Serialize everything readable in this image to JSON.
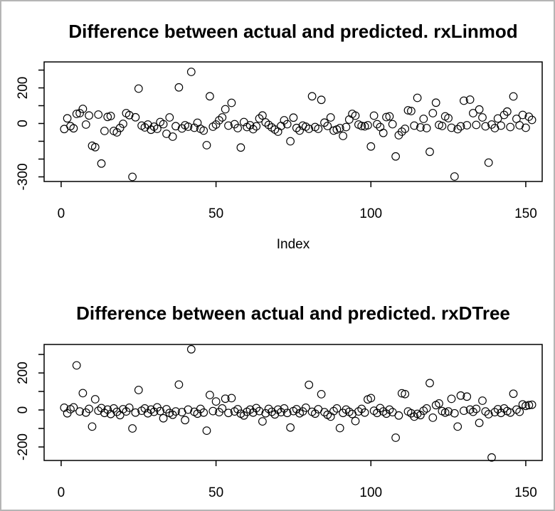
{
  "window": {
    "background": "#ffffff",
    "border_color": "#b5b5b5",
    "text_color": "#000000",
    "marker_color": "#000000"
  },
  "chart_data": [
    {
      "type": "scatter",
      "title": "Difference between actual and predicted. rxLinmod",
      "xlabel": "Index",
      "ylabel": "",
      "marker": "open-circle",
      "grid": false,
      "xlim": [
        -5.5,
        155.3
      ],
      "ylim": [
        -326,
        346
      ],
      "x_ticks": [
        {
          "v": 0,
          "label": "0"
        },
        {
          "v": 50,
          "label": "50"
        },
        {
          "v": 100,
          "label": "100"
        },
        {
          "v": 150,
          "label": "150"
        }
      ],
      "y_ticks": [
        {
          "v": 300,
          "label": ""
        },
        {
          "v": 200,
          "label": "200"
        },
        {
          "v": 100,
          "label": ""
        },
        {
          "v": 0,
          "label": "0"
        },
        {
          "v": -100,
          "label": ""
        },
        {
          "v": -200,
          "label": ""
        },
        {
          "v": -300,
          "label": "-300"
        }
      ],
      "points": [
        [
          1,
          -31
        ],
        [
          2,
          29
        ],
        [
          3,
          -15
        ],
        [
          4,
          -27
        ],
        [
          5,
          54
        ],
        [
          6,
          58
        ],
        [
          7,
          82
        ],
        [
          8,
          -6
        ],
        [
          9,
          45
        ],
        [
          10,
          -125
        ],
        [
          11,
          -133
        ],
        [
          12,
          50
        ],
        [
          13,
          -225
        ],
        [
          14,
          -42
        ],
        [
          15,
          37
        ],
        [
          16,
          42
        ],
        [
          17,
          -42
        ],
        [
          18,
          -50
        ],
        [
          19,
          -25
        ],
        [
          20,
          -2
        ],
        [
          21,
          58
        ],
        [
          22,
          47
        ],
        [
          23,
          -300
        ],
        [
          24,
          35
        ],
        [
          25,
          196
        ],
        [
          26,
          -12
        ],
        [
          27,
          -22
        ],
        [
          28,
          -6
        ],
        [
          29,
          -35
        ],
        [
          30,
          -18
        ],
        [
          31,
          -30
        ],
        [
          32,
          8
        ],
        [
          33,
          -4
        ],
        [
          34,
          -58
        ],
        [
          35,
          34
        ],
        [
          36,
          -74
        ],
        [
          37,
          -15
        ],
        [
          38,
          203
        ],
        [
          39,
          -28
        ],
        [
          40,
          -10
        ],
        [
          41,
          -18
        ],
        [
          42,
          290
        ],
        [
          43,
          -24
        ],
        [
          44,
          4
        ],
        [
          45,
          -30
        ],
        [
          46,
          -40
        ],
        [
          47,
          -122
        ],
        [
          48,
          153
        ],
        [
          49,
          -18
        ],
        [
          50,
          -6
        ],
        [
          51,
          18
        ],
        [
          52,
          34
        ],
        [
          53,
          80
        ],
        [
          54,
          -12
        ],
        [
          55,
          116
        ],
        [
          56,
          -4
        ],
        [
          57,
          -26
        ],
        [
          58,
          -135
        ],
        [
          59,
          8
        ],
        [
          60,
          -20
        ],
        [
          61,
          -10
        ],
        [
          62,
          -32
        ],
        [
          63,
          -16
        ],
        [
          64,
          28
        ],
        [
          65,
          45
        ],
        [
          66,
          6
        ],
        [
          67,
          -8
        ],
        [
          68,
          -22
        ],
        [
          69,
          -34
        ],
        [
          70,
          -46
        ],
        [
          71,
          -14
        ],
        [
          72,
          18
        ],
        [
          73,
          -4
        ],
        [
          74,
          -100
        ],
        [
          75,
          33
        ],
        [
          76,
          -25
        ],
        [
          77,
          -40
        ],
        [
          78,
          -12
        ],
        [
          79,
          -18
        ],
        [
          80,
          -30
        ],
        [
          81,
          153
        ],
        [
          82,
          -20
        ],
        [
          83,
          -30
        ],
        [
          84,
          133
        ],
        [
          85,
          5
        ],
        [
          86,
          -14
        ],
        [
          87,
          34
        ],
        [
          88,
          -40
        ],
        [
          89,
          -34
        ],
        [
          90,
          -26
        ],
        [
          91,
          -70
        ],
        [
          92,
          -20
        ],
        [
          93,
          22
        ],
        [
          94,
          54
        ],
        [
          95,
          44
        ],
        [
          96,
          -6
        ],
        [
          97,
          -14
        ],
        [
          98,
          -16
        ],
        [
          99,
          -10
        ],
        [
          100,
          -129
        ],
        [
          101,
          44
        ],
        [
          102,
          -4
        ],
        [
          103,
          -20
        ],
        [
          104,
          -53
        ],
        [
          105,
          36
        ],
        [
          106,
          40
        ],
        [
          107,
          -4
        ],
        [
          108,
          -185
        ],
        [
          109,
          -66
        ],
        [
          110,
          -46
        ],
        [
          111,
          -30
        ],
        [
          112,
          74
        ],
        [
          113,
          70
        ],
        [
          114,
          -12
        ],
        [
          115,
          144
        ],
        [
          116,
          -22
        ],
        [
          117,
          26
        ],
        [
          118,
          -26
        ],
        [
          119,
          -159
        ],
        [
          120,
          58
        ],
        [
          121,
          117
        ],
        [
          122,
          -8
        ],
        [
          123,
          -14
        ],
        [
          124,
          40
        ],
        [
          125,
          30
        ],
        [
          126,
          -24
        ],
        [
          127,
          -298
        ],
        [
          128,
          -32
        ],
        [
          129,
          -16
        ],
        [
          130,
          128
        ],
        [
          131,
          -10
        ],
        [
          132,
          134
        ],
        [
          133,
          58
        ],
        [
          134,
          -8
        ],
        [
          135,
          79
        ],
        [
          136,
          34
        ],
        [
          137,
          -16
        ],
        [
          138,
          -220
        ],
        [
          139,
          -6
        ],
        [
          140,
          -26
        ],
        [
          141,
          28
        ],
        [
          142,
          -12
        ],
        [
          143,
          48
        ],
        [
          144,
          67
        ],
        [
          145,
          -20
        ],
        [
          146,
          152
        ],
        [
          147,
          26
        ],
        [
          148,
          -10
        ],
        [
          149,
          48
        ],
        [
          150,
          -24
        ],
        [
          151,
          38
        ],
        [
          152,
          20
        ]
      ]
    },
    {
      "type": "scatter",
      "title": "Difference between actual and predicted. rxDTree",
      "xlabel": "",
      "ylabel": "",
      "marker": "open-circle",
      "grid": false,
      "xlim": [
        -5.5,
        155.3
      ],
      "ylim": [
        -273,
        354
      ],
      "x_ticks": [
        {
          "v": 0,
          "label": "0"
        },
        {
          "v": 50,
          "label": "50"
        },
        {
          "v": 100,
          "label": "100"
        },
        {
          "v": 150,
          "label": "150"
        }
      ],
      "y_ticks": [
        {
          "v": 300,
          "label": ""
        },
        {
          "v": 200,
          "label": "200"
        },
        {
          "v": 100,
          "label": ""
        },
        {
          "v": 0,
          "label": "0"
        },
        {
          "v": -100,
          "label": ""
        },
        {
          "v": -200,
          "label": "-200"
        }
      ],
      "points": [
        [
          1,
          12
        ],
        [
          2,
          -18
        ],
        [
          3,
          4
        ],
        [
          4,
          14
        ],
        [
          5,
          241
        ],
        [
          6,
          -8
        ],
        [
          7,
          91
        ],
        [
          8,
          -14
        ],
        [
          9,
          6
        ],
        [
          10,
          -90
        ],
        [
          11,
          58
        ],
        [
          12,
          -4
        ],
        [
          13,
          10
        ],
        [
          14,
          -16
        ],
        [
          15,
          2
        ],
        [
          16,
          -22
        ],
        [
          17,
          8
        ],
        [
          18,
          -10
        ],
        [
          19,
          -28
        ],
        [
          20,
          4
        ],
        [
          21,
          -8
        ],
        [
          22,
          12
        ],
        [
          23,
          -100
        ],
        [
          24,
          -14
        ],
        [
          25,
          108
        ],
        [
          26,
          -4
        ],
        [
          27,
          8
        ],
        [
          28,
          -18
        ],
        [
          29,
          2
        ],
        [
          30,
          -10
        ],
        [
          31,
          14
        ],
        [
          32,
          -6
        ],
        [
          33,
          -45
        ],
        [
          34,
          4
        ],
        [
          35,
          -16
        ],
        [
          36,
          -26
        ],
        [
          37,
          -8
        ],
        [
          38,
          137
        ],
        [
          39,
          -12
        ],
        [
          40,
          -55
        ],
        [
          41,
          2
        ],
        [
          42,
          328
        ],
        [
          43,
          -10
        ],
        [
          44,
          -20
        ],
        [
          45,
          6
        ],
        [
          46,
          -14
        ],
        [
          47,
          -112
        ],
        [
          48,
          81
        ],
        [
          49,
          -6
        ],
        [
          50,
          46
        ],
        [
          51,
          -12
        ],
        [
          52,
          8
        ],
        [
          53,
          61
        ],
        [
          54,
          -16
        ],
        [
          55,
          64
        ],
        [
          56,
          -8
        ],
        [
          57,
          4
        ],
        [
          58,
          -20
        ],
        [
          59,
          -30
        ],
        [
          60,
          -10
        ],
        [
          61,
          2
        ],
        [
          62,
          -14
        ],
        [
          63,
          10
        ],
        [
          64,
          -6
        ],
        [
          65,
          -62
        ],
        [
          66,
          -18
        ],
        [
          67,
          6
        ],
        [
          68,
          -10
        ],
        [
          69,
          -24
        ],
        [
          70,
          2
        ],
        [
          71,
          -12
        ],
        [
          72,
          8
        ],
        [
          73,
          -16
        ],
        [
          74,
          -95
        ],
        [
          75,
          -6
        ],
        [
          76,
          4
        ],
        [
          77,
          -18
        ],
        [
          78,
          -8
        ],
        [
          79,
          12
        ],
        [
          80,
          136
        ],
        [
          81,
          -10
        ],
        [
          82,
          -20
        ],
        [
          83,
          4
        ],
        [
          84,
          85
        ],
        [
          85,
          -12
        ],
        [
          86,
          -26
        ],
        [
          87,
          -36
        ],
        [
          88,
          -6
        ],
        [
          89,
          8
        ],
        [
          90,
          -98
        ],
        [
          91,
          -16
        ],
        [
          92,
          2
        ],
        [
          93,
          -10
        ],
        [
          94,
          -22
        ],
        [
          95,
          -60
        ],
        [
          96,
          -8
        ],
        [
          97,
          6
        ],
        [
          98,
          -14
        ],
        [
          99,
          57
        ],
        [
          100,
          64
        ],
        [
          101,
          -4
        ],
        [
          102,
          -16
        ],
        [
          103,
          10
        ],
        [
          104,
          -8
        ],
        [
          105,
          -20
        ],
        [
          106,
          2
        ],
        [
          107,
          -12
        ],
        [
          108,
          -150
        ],
        [
          109,
          -30
        ],
        [
          110,
          90
        ],
        [
          111,
          86
        ],
        [
          112,
          -8
        ],
        [
          113,
          -18
        ],
        [
          114,
          -36
        ],
        [
          115,
          -21
        ],
        [
          116,
          -28
        ],
        [
          117,
          -4
        ],
        [
          118,
          8
        ],
        [
          119,
          145
        ],
        [
          120,
          -42
        ],
        [
          121,
          26
        ],
        [
          122,
          35
        ],
        [
          123,
          -6
        ],
        [
          124,
          -14
        ],
        [
          125,
          -8
        ],
        [
          126,
          60
        ],
        [
          127,
          -18
        ],
        [
          128,
          -90
        ],
        [
          129,
          78
        ],
        [
          130,
          -4
        ],
        [
          131,
          72
        ],
        [
          132,
          2
        ],
        [
          133,
          -10
        ],
        [
          134,
          6
        ],
        [
          135,
          -70
        ],
        [
          136,
          50
        ],
        [
          137,
          -8
        ],
        [
          138,
          -23
        ],
        [
          139,
          -257
        ],
        [
          140,
          -12
        ],
        [
          141,
          4
        ],
        [
          142,
          -16
        ],
        [
          143,
          8
        ],
        [
          144,
          -6
        ],
        [
          145,
          -14
        ],
        [
          146,
          88
        ],
        [
          147,
          2
        ],
        [
          148,
          -10
        ],
        [
          149,
          30
        ],
        [
          150,
          22
        ],
        [
          151,
          26
        ],
        [
          152,
          28
        ]
      ]
    }
  ]
}
